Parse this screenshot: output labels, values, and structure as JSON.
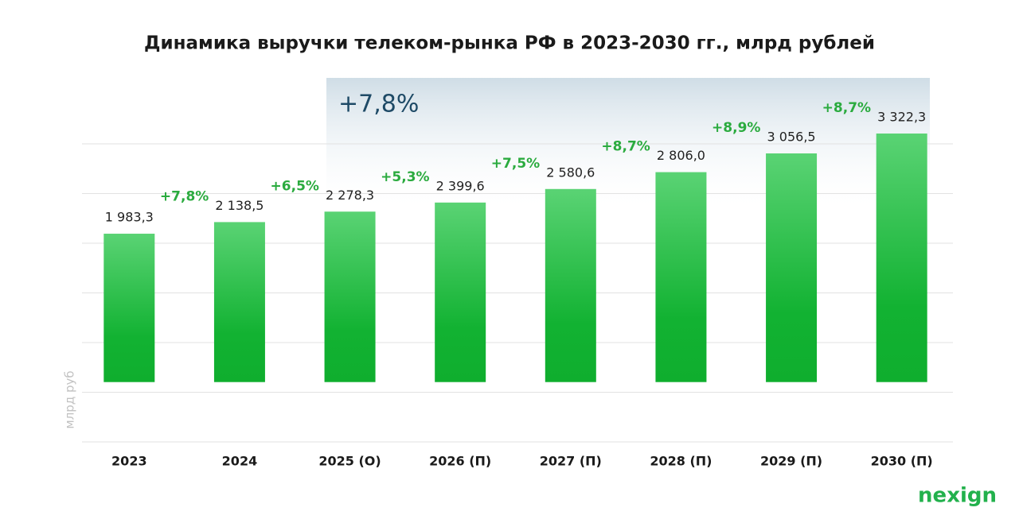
{
  "chart_data": {
    "type": "bar",
    "title": "Динамика выручки телеком-рынка РФ в 2023-2030 гг., млрд рублей",
    "y_label": "млрд руб",
    "categories": [
      "2023",
      "2024",
      "2025 (О)",
      "2026 (П)",
      "2027 (П)",
      "2028 (П)",
      "2029 (П)",
      "2030 (П)"
    ],
    "values": [
      1983.3,
      2138.5,
      2278.3,
      2399.6,
      2580.6,
      2806.0,
      3056.5,
      3322.3
    ],
    "value_labels": [
      "1 983,3",
      "2 138,5",
      "2 278,3",
      "2 399,6",
      "2 580,6",
      "2 806,0",
      "3 056,5",
      "3 322,3"
    ],
    "color": "#1db83a",
    "growth": {
      "values": [
        7.8,
        6.5,
        5.3,
        7.5,
        8.7,
        8.9,
        8.7
      ],
      "value_labels": [
        "+7,8%",
        "+6,5%",
        "+5,3%",
        "+7,5%",
        "+8,7%",
        "+8,9%",
        "+8,7%"
      ],
      "color": "#2bab3f"
    },
    "cagr": {
      "value": 7.8,
      "label": "+7,8%"
    },
    "ylim": [
      -800,
      3184
    ],
    "yticks": [
      -800,
      -136,
      528,
      1192,
      1856,
      2520,
      3184
    ],
    "grid": true,
    "brand": "nexign"
  }
}
